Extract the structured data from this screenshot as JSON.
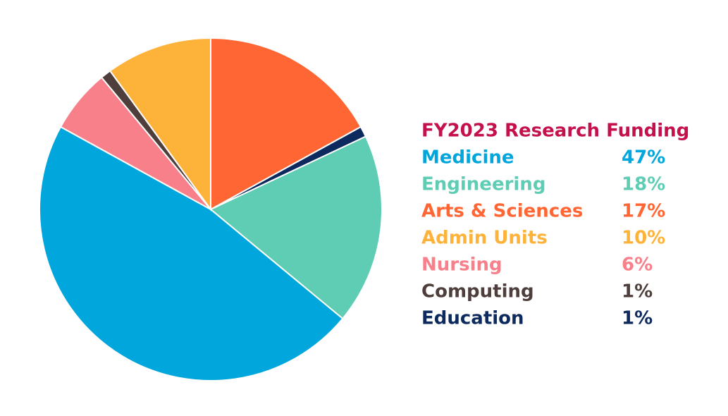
{
  "chart_data": {
    "type": "pie",
    "title": "FY2023 Research Funding",
    "categories": [
      "Arts & Sciences",
      "Education",
      "Engineering",
      "Medicine",
      "Nursing",
      "Computing",
      "Admin Units"
    ],
    "values": [
      17,
      1,
      18,
      47,
      6,
      1,
      10
    ],
    "value_labels": [
      "17%",
      "1%",
      "18%",
      "47%",
      "6%",
      "1%",
      "10%"
    ],
    "colors": [
      "#ff6633",
      "#0d2a5e",
      "#5ecdb3",
      "#00a6dc",
      "#f7808a",
      "#4f3f3c",
      "#fdb23a"
    ],
    "title_color": "#c4114c"
  }
}
